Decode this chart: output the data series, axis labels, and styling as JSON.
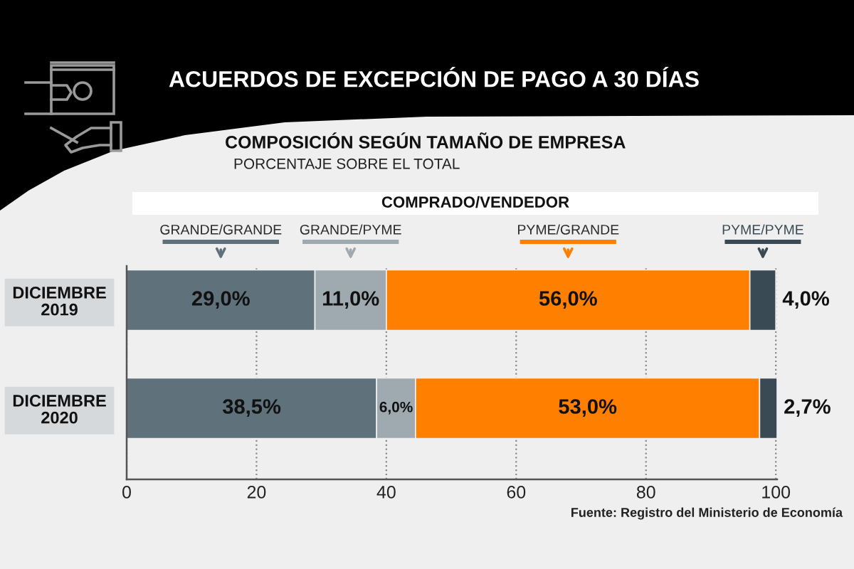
{
  "chart_data": {
    "type": "bar",
    "orientation": "horizontal",
    "stacked": true,
    "title": "ACUERDOS DE EXCEPCIÓN DE PAGO A 30 DÍAS",
    "subtitle": "COMPOSICIÓN SEGÚN TAMAÑO DE EMPRESA",
    "annotations": [
      "PORCENTAJE SOBRE EL TOTAL",
      "Fuente: Registro del Ministerio de Economía"
    ],
    "legend_title": "COMPRADO/VENDEDOR",
    "legend": "top",
    "categories": [
      "DICIEMBRE\n2019",
      "DICIEMBRE\n2020"
    ],
    "series": [
      {
        "name": "GRANDE/GRANDE",
        "color": "#5f717b",
        "values": [
          29.0,
          38.5
        ],
        "value_labels": [
          "29,0%",
          "38,5%"
        ]
      },
      {
        "name": "GRANDE/PYME",
        "color": "#9eaab0",
        "values": [
          11.0,
          6.0
        ],
        "value_labels": [
          "11,0%",
          "6,0%"
        ]
      },
      {
        "name": "PYME/GRANDE",
        "color": "#ff7f00",
        "values": [
          56.0,
          53.0
        ],
        "value_labels": [
          "56,0%",
          "53,0%"
        ]
      },
      {
        "name": "PYME/PYME",
        "color": "#394a55",
        "values": [
          4.0,
          2.7
        ],
        "value_labels": [
          "4,0%",
          "2,7%"
        ]
      }
    ],
    "xlim": [
      0,
      100.2
    ],
    "xticks": [
      0,
      20,
      40,
      60,
      80,
      100
    ],
    "grid": "x"
  }
}
